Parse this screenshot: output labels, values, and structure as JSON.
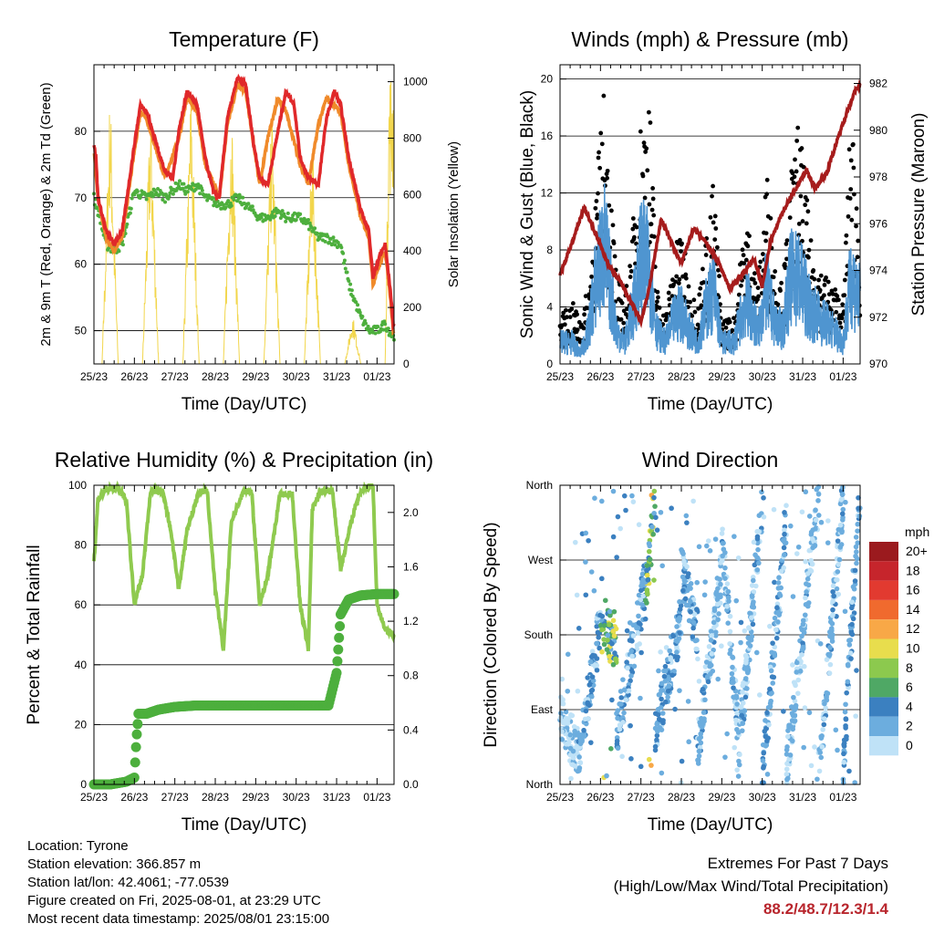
{
  "chart_data": [
    {
      "type": "line",
      "title": "Temperature (F)",
      "xlabel": "Time (Day/UTC)",
      "ylabel": "2m & 9m T (Red, Orange) & 2m Td (Green)",
      "y2label": "Solar Insolation (Yellow)",
      "x_ticks": [
        "25/23",
        "26/23",
        "27/23",
        "28/23",
        "29/23",
        "30/23",
        "31/23",
        "01/23"
      ],
      "ylim": [
        45,
        90
      ],
      "y_ticks": [
        50,
        60,
        70,
        80
      ],
      "y2lim": [
        0,
        1060
      ],
      "y2_ticks": [
        0,
        200,
        400,
        600,
        800,
        1000
      ],
      "grid": "horizontal",
      "series": [
        {
          "color": "#e0282a",
          "x": [
            0,
            0.05,
            0.1,
            0.3,
            0.5,
            0.7,
            1.0,
            1.15,
            1.3,
            1.55,
            1.75,
            1.95,
            2.1,
            2.3,
            2.55,
            2.75,
            2.95,
            3.1,
            3.3,
            3.55,
            3.75,
            3.95,
            4.1,
            4.3,
            4.55,
            4.75,
            4.95,
            5.1,
            5.3,
            5.55,
            5.75,
            5.95,
            6.1,
            6.3,
            6.6,
            6.8,
            6.9,
            7.05,
            7.2,
            7.33,
            7.4
          ],
          "values": [
            78,
            76,
            70,
            65,
            63,
            65,
            78,
            84,
            83,
            78,
            74,
            73,
            80,
            86,
            84,
            76,
            71,
            70,
            82,
            88,
            87,
            78,
            73,
            72,
            80,
            86,
            84,
            76,
            73,
            72,
            82,
            86,
            84,
            76,
            68,
            65,
            58,
            61,
            63,
            56,
            51
          ]
        },
        {
          "color": "#f08a2a",
          "x": [
            0,
            0.1,
            0.3,
            0.5,
            0.7,
            1.0,
            1.15,
            1.3,
            1.55,
            1.75,
            2.1,
            2.3,
            2.55,
            2.75,
            3.1,
            3.3,
            3.55,
            3.75,
            4.1,
            4.3,
            4.55,
            4.75,
            5.1,
            5.3,
            5.55,
            5.75,
            6.1,
            6.3,
            6.6,
            6.8,
            6.9,
            7.05,
            7.2,
            7.33,
            7.4
          ],
          "values": [
            77,
            70,
            64,
            62,
            64,
            77,
            83,
            82,
            77,
            73,
            79,
            85,
            83,
            75,
            70,
            81,
            87,
            86,
            72,
            79,
            85,
            83,
            75,
            72,
            81,
            85,
            83,
            75,
            67,
            64,
            57,
            60,
            62,
            55,
            50
          ]
        },
        {
          "color": "#4daf3d",
          "x": [
            0,
            0.1,
            0.3,
            0.5,
            0.7,
            1.0,
            1.3,
            1.55,
            1.75,
            2.1,
            2.3,
            2.55,
            2.75,
            3.1,
            3.3,
            3.55,
            3.75,
            4.1,
            4.3,
            4.55,
            4.75,
            5.1,
            5.3,
            5.55,
            5.75,
            6.1,
            6.3,
            6.6,
            6.8,
            7.0,
            7.2,
            7.4
          ],
          "values": [
            70,
            68,
            63,
            62,
            63,
            71,
            70,
            71,
            70,
            72,
            71,
            72,
            70,
            69,
            69,
            70,
            69,
            67,
            67,
            68,
            67,
            67,
            66,
            64,
            64,
            63,
            57,
            52,
            50,
            50,
            51,
            49
          ]
        },
        {
          "color": "#f2d64c",
          "axis": "right",
          "x": [
            0.2,
            0.4,
            0.6,
            1.2,
            1.4,
            1.6,
            2.2,
            2.4,
            2.6,
            3.2,
            3.4,
            3.6,
            4.2,
            4.4,
            4.6,
            5.2,
            5.4,
            5.6,
            6.2,
            6.4,
            6.6,
            7.2,
            7.3
          ],
          "values": [
            0,
            1000,
            0,
            0,
            950,
            0,
            0,
            1020,
            0,
            0,
            940,
            0,
            0,
            930,
            0,
            0,
            820,
            0,
            0,
            180,
            0,
            0,
            1060
          ]
        }
      ]
    },
    {
      "type": "scatter",
      "title": "Winds (mph) & Pressure (mb)",
      "xlabel": "Time (Day/UTC)",
      "ylabel": "Sonic Wind & Gust (Blue, Black)",
      "y2label": "Station Pressure (Maroon)",
      "x_ticks": [
        "25/23",
        "26/23",
        "27/23",
        "28/23",
        "29/23",
        "30/23",
        "31/23",
        "01/23"
      ],
      "ylim": [
        0,
        21
      ],
      "y_ticks": [
        0,
        4,
        8,
        12,
        16,
        20
      ],
      "y2lim": [
        970,
        982.8
      ],
      "y2_ticks": [
        970,
        972,
        974,
        976,
        978,
        980,
        982
      ],
      "grid": "horizontal",
      "series": [
        {
          "color": "#000000",
          "x": [
            0,
            0.3,
            0.5,
            0.7,
            0.9,
            1.1,
            1.4,
            1.6,
            1.8,
            2.0,
            2.2,
            2.4,
            2.6,
            2.8,
            3.0,
            3.2,
            3.4,
            3.6,
            3.8,
            4.0,
            4.3,
            4.6,
            4.9,
            5.1,
            5.3,
            5.5,
            5.7,
            5.9,
            6.2,
            6.5,
            6.8,
            7.0,
            7.2,
            7.4
          ],
          "values": [
            3,
            4,
            3,
            5,
            12,
            18,
            6,
            4,
            9,
            16,
            18,
            5,
            3,
            7,
            9,
            5,
            4,
            8,
            12,
            3,
            3,
            10,
            5,
            13,
            7,
            5,
            12,
            16,
            8,
            6,
            5,
            4,
            17,
            9
          ]
        },
        {
          "color": "#4f95d0",
          "x": [
            0,
            0.3,
            0.5,
            0.7,
            0.9,
            1.1,
            1.4,
            1.6,
            1.8,
            2.0,
            2.2,
            2.4,
            2.6,
            2.8,
            3.0,
            3.2,
            3.4,
            3.6,
            3.8,
            4.0,
            4.3,
            4.6,
            4.9,
            5.1,
            5.3,
            5.5,
            5.7,
            5.9,
            6.2,
            6.5,
            6.8,
            7.0,
            7.2,
            7.4
          ],
          "values": [
            2,
            2,
            1,
            3,
            8,
            11,
            3,
            2,
            5,
            10,
            9,
            3,
            2,
            4,
            5,
            3,
            2,
            5,
            7,
            2,
            2,
            6,
            3,
            7,
            4,
            3,
            8,
            8,
            5,
            4,
            3,
            2,
            8,
            6
          ]
        },
        {
          "color": "#a61c1c",
          "axis": "right",
          "x": [
            0,
            0.3,
            0.6,
            0.9,
            1.2,
            1.5,
            1.8,
            2.0,
            2.2,
            2.5,
            2.8,
            3.0,
            3.3,
            3.6,
            3.9,
            4.2,
            4.5,
            4.8,
            5.0,
            5.2,
            5.5,
            5.8,
            6.1,
            6.3,
            6.6,
            6.9,
            7.1,
            7.3,
            7.4
          ],
          "values": [
            973.8,
            975.2,
            976.7,
            975.5,
            974.2,
            973.5,
            972.5,
            971.8,
            973.2,
            976.2,
            975.0,
            974.3,
            975.8,
            975.2,
            974.4,
            973.2,
            973.8,
            974.5,
            973.3,
            975.2,
            976.5,
            977.4,
            978.3,
            977.5,
            978.2,
            979.8,
            980.8,
            981.7,
            981.9
          ]
        }
      ]
    },
    {
      "type": "line",
      "title": "Relative Humidity (%) & Precipitation (in)",
      "xlabel": "Time (Day/UTC)",
      "ylabel": "Percent & Total Rainfall",
      "x_ticks": [
        "25/23",
        "26/23",
        "27/23",
        "28/23",
        "29/23",
        "30/23",
        "31/23",
        "01/23"
      ],
      "ylim": [
        0,
        100
      ],
      "y_ticks": [
        0,
        20,
        40,
        60,
        80,
        100
      ],
      "y2lim": [
        0,
        2.2
      ],
      "y2_ticks": [
        "0.0",
        "0.4",
        "0.8",
        "1.2",
        "1.6",
        "2.0"
      ],
      "grid": "horizontal",
      "series": [
        {
          "color": "#8fca4f",
          "x": [
            0,
            0.1,
            0.3,
            0.6,
            0.8,
            1.0,
            1.2,
            1.4,
            1.7,
            1.9,
            2.1,
            2.3,
            2.6,
            2.8,
            3.0,
            3.2,
            3.4,
            3.7,
            3.9,
            4.1,
            4.3,
            4.6,
            4.9,
            5.1,
            5.3,
            5.4,
            5.6,
            5.9,
            6.1,
            6.4,
            6.6,
            6.8,
            6.9,
            7.0,
            7.2,
            7.4
          ],
          "values": [
            74,
            95,
            99,
            99,
            95,
            60,
            70,
            98,
            98,
            85,
            65,
            85,
            98,
            98,
            65,
            45,
            88,
            98,
            98,
            60,
            70,
            97,
            97,
            60,
            45,
            92,
            98,
            98,
            72,
            90,
            98,
            100,
            100,
            60,
            52,
            50
          ]
        },
        {
          "color": "#4daf3d",
          "axis": "right",
          "x": [
            0,
            0.4,
            0.8,
            1.0,
            1.05,
            1.1,
            1.3,
            1.6,
            2.0,
            2.5,
            3.0,
            3.5,
            4.0,
            4.5,
            5.0,
            5.5,
            5.8,
            6.0,
            6.1,
            6.3,
            6.6,
            7.0,
            7.4
          ],
          "values": [
            0.0,
            0.0,
            0.02,
            0.05,
            0.33,
            0.52,
            0.52,
            0.55,
            0.57,
            0.58,
            0.58,
            0.58,
            0.58,
            0.58,
            0.58,
            0.58,
            0.58,
            0.82,
            1.25,
            1.36,
            1.39,
            1.4,
            1.4
          ]
        }
      ]
    },
    {
      "type": "scatter",
      "title": "Wind Direction",
      "xlabel": "Time (Day/UTC)",
      "ylabel": "Direction (Colored By Speed)",
      "x_ticks": [
        "25/23",
        "26/23",
        "27/23",
        "28/23",
        "29/23",
        "30/23",
        "31/23",
        "01/23"
      ],
      "y_ticks": [
        "North",
        "East",
        "South",
        "West",
        "North"
      ],
      "ylim": [
        0,
        360
      ],
      "grid": "horizontal",
      "legend": {
        "title": "mph",
        "labels": [
          "20+",
          "18",
          "16",
          "14",
          "12",
          "10",
          "8",
          "6",
          "4",
          "2",
          "0"
        ],
        "colors": [
          "#9b1a1e",
          "#c6252c",
          "#e23a30",
          "#f06a2e",
          "#f8a847",
          "#e8dd4d",
          "#8cc94e",
          "#4fa865",
          "#3b80c0",
          "#6cadde",
          "#bfe2f7"
        ]
      }
    }
  ],
  "footer": {
    "location": "Location: Tyrone",
    "elevation": "Station elevation: 366.857 m",
    "latlon": "Station lat/lon: 42.4061; -77.0539",
    "created": "Figure created on Fri, 2025-08-01, at 23:29 UTC",
    "recent": "Most recent data timestamp: 2025/08/01 23:15:00"
  },
  "extremes": {
    "title": "Extremes For Past 7 Days",
    "subtitle": "(High/Low/Max Wind/Total Precipitation)",
    "values": "88.2/48.7/12.3/1.4"
  }
}
